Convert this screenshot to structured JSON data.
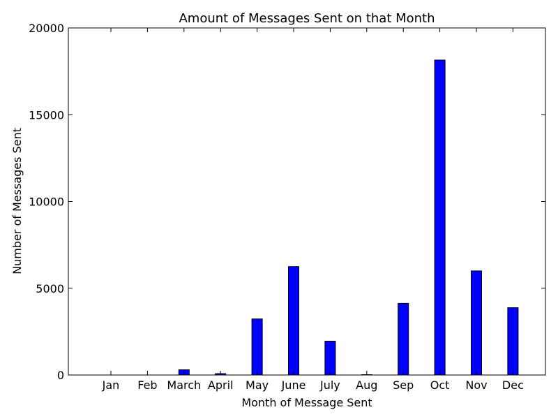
{
  "chart_data": {
    "type": "bar",
    "title": "Amount of Messages Sent on that Month",
    "xlabel": "Month of Message Sent",
    "ylabel": "Number of Messages Sent",
    "categories": [
      "Jan",
      "Feb",
      "March",
      "April",
      "May",
      "June",
      "July",
      "Aug",
      "Sep",
      "Oct",
      "Nov",
      "Dec"
    ],
    "values": [
      0,
      0,
      300,
      80,
      3230,
      6250,
      1950,
      20,
      4130,
      18150,
      6000,
      3880
    ],
    "ylim": [
      0,
      20000
    ],
    "yticks": [
      0,
      5000,
      10000,
      15000,
      20000
    ],
    "grid": false,
    "bar_color": "#0000ff",
    "edge_color": "#000000"
  }
}
